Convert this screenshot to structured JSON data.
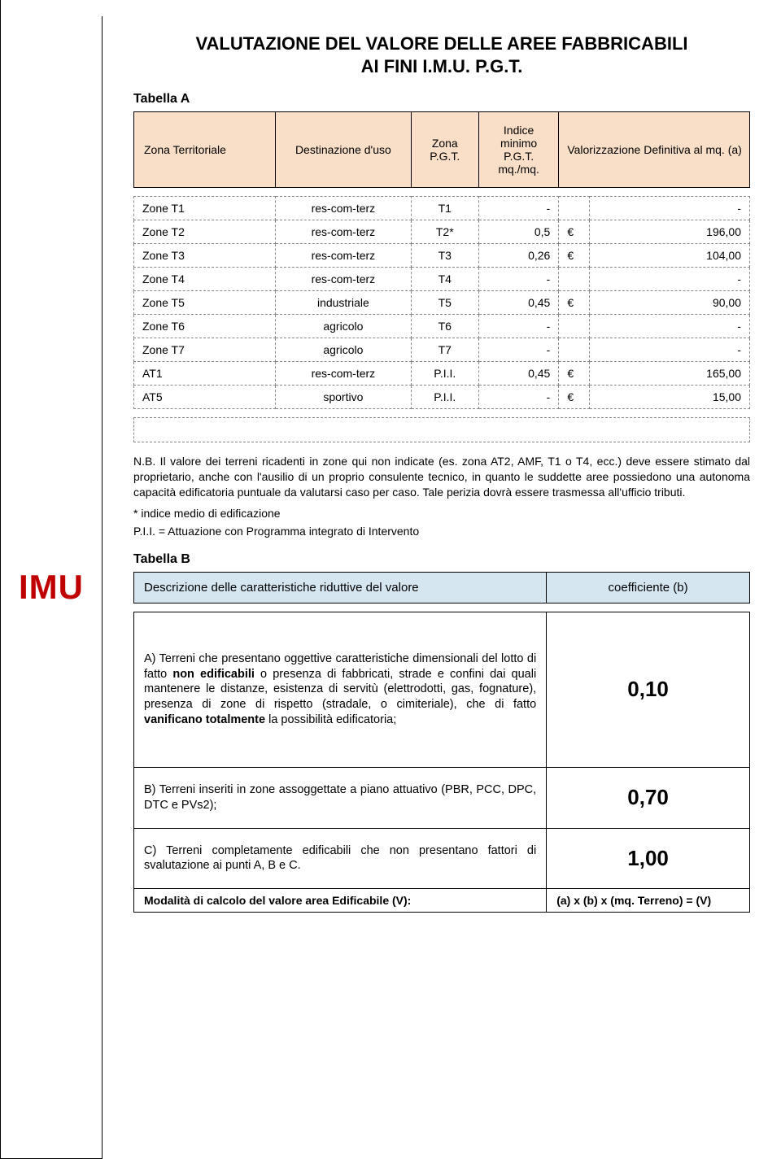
{
  "sidebar": {
    "label": "IMU"
  },
  "title": "VALUTAZIONE DEL VALORE DELLE AREE FABBRICABILI\nAI FINI I.M.U. P.G.T.",
  "tableA": {
    "label": "Tabella A",
    "headers": {
      "c1": "Zona Territoriale",
      "c2": "Destinazione d'uso",
      "c3": "Zona P.G.T.",
      "c4": "Indice minimo P.G.T. mq./mq.",
      "c5": "Valorizzazione Definitiva al mq. (a)"
    },
    "colors": {
      "header_bg": "#fadfc8",
      "border": "#000000",
      "dashed": "#888888"
    },
    "rows": [
      {
        "c1": "Zone T1",
        "c2": "res-com-terz",
        "c3": "T1",
        "c4": "-",
        "cur": "",
        "c5": "-"
      },
      {
        "c1": "Zone T2",
        "c2": "res-com-terz",
        "c3": "T2*",
        "c4": "0,5",
        "cur": "€",
        "c5": "196,00"
      },
      {
        "c1": "Zone T3",
        "c2": "res-com-terz",
        "c3": "T3",
        "c4": "0,26",
        "cur": "€",
        "c5": "104,00"
      },
      {
        "c1": "Zone T4",
        "c2": "res-com-terz",
        "c3": "T4",
        "c4": "-",
        "cur": "",
        "c5": "-"
      },
      {
        "c1": "Zone T5",
        "c2": "industriale",
        "c3": "T5",
        "c4": "0,45",
        "cur": "€",
        "c5": "90,00"
      },
      {
        "c1": "Zone T6",
        "c2": "agricolo",
        "c3": "T6",
        "c4": "-",
        "cur": "",
        "c5": "-"
      },
      {
        "c1": "Zone T7",
        "c2": "agricolo",
        "c3": "T7",
        "c4": "-",
        "cur": "",
        "c5": "-"
      },
      {
        "c1": "AT1",
        "c2": "res-com-terz",
        "c3": "P.I.I.",
        "c4": "0,45",
        "cur": "€",
        "c5": "165,00"
      },
      {
        "c1": "AT5",
        "c2": "sportivo",
        "c3": "P.I.I.",
        "c4": "-",
        "cur": "€",
        "c5": "15,00"
      }
    ]
  },
  "note_nb": "N.B. Il valore dei terreni ricadenti in zone qui non indicate (es. zona AT2, AMF, T1 o T4, ecc.) deve essere stimato dal proprietario, anche con l'ausilio di un proprio consulente tecnico, in quanto le suddette aree possiedono una autonoma capacità edificatoria puntuale da valutarsi caso per caso. Tale perizia dovrà essere trasmessa all'ufficio tributi.",
  "note_star": "* indice medio di edificazione",
  "note_pii": "P.I.I. = Attuazione con Programma integrato di Intervento",
  "tableB": {
    "label": "Tabella B",
    "headers": {
      "c1": "Descrizione delle caratteristiche riduttive del valore",
      "c2": "coefficiente (b)"
    },
    "colors": {
      "header_bg": "#d6e6f0",
      "coeff_fontsize": 26
    },
    "rows": [
      {
        "desc_pre": "A)  Terreni  che  presentano  oggettive  caratteristiche dimensionali del lotto di fatto ",
        "bold1": "non edificabili",
        "desc_mid": " o presenza di  fabbricati,  strade  e  confini  dai  quali  mantenere  le distanze, esistenza di servitù (elettrodotti, gas, fognature), presenza di zone di rispetto (stradale, o cimiteriale), che di fatto ",
        "bold2": "vanificano totalmente",
        "desc_post": " la possibilità edificatoria;",
        "coeff": "0,10",
        "tall": true
      },
      {
        "desc_pre": "B) Terreni inseriti in zone assoggettate a piano attuativo (PBR, PCC, DPC, DTC e PVs2);",
        "bold1": "",
        "desc_mid": "",
        "bold2": "",
        "desc_post": "",
        "coeff": "0,70",
        "tall": false
      },
      {
        "desc_pre": "C) Terreni completamente edificabili che non presentano fattori di svalutazione ai punti A, B e C.",
        "bold1": "",
        "desc_mid": "",
        "bold2": "",
        "desc_post": "",
        "coeff": "1,00",
        "tall": false
      }
    ],
    "footer": {
      "left": "Modalità di calcolo del valore area Edificabile (V):",
      "right": "(a) x (b) x (mq. Terreno) = (V)"
    }
  }
}
